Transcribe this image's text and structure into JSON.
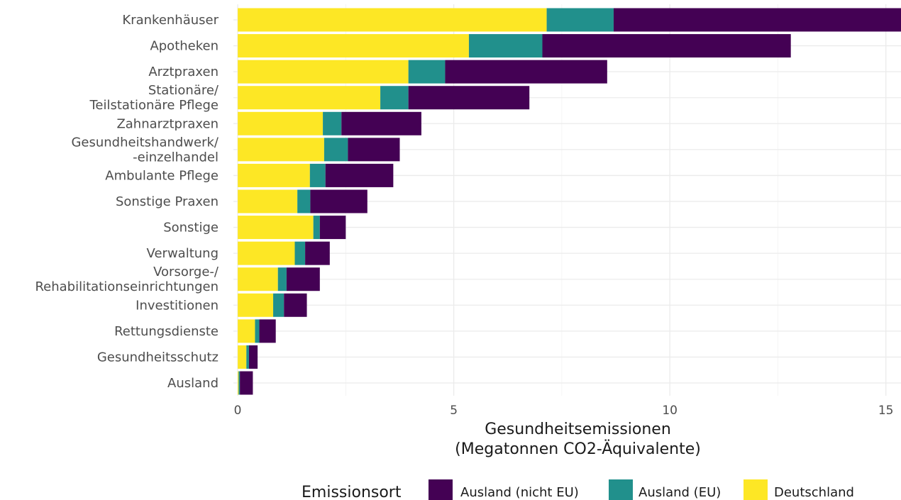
{
  "chart_data": {
    "type": "bar",
    "orientation": "horizontal",
    "stacked": true,
    "categories": [
      [
        "Krankenhäuser"
      ],
      [
        "Apotheken"
      ],
      [
        "Arztpraxen"
      ],
      [
        "Stationäre/",
        "Teilstationäre Pflege"
      ],
      [
        "Zahnarztpraxen"
      ],
      [
        "Gesundheitshandwerk/",
        "-einzelhandel"
      ],
      [
        "Ambulante Pflege"
      ],
      [
        "Sonstige Praxen"
      ],
      [
        "Sonstige"
      ],
      [
        "Verwaltung"
      ],
      [
        "Vorsorge-/",
        "Rehabilitationseinrichtungen"
      ],
      [
        "Investitionen"
      ],
      [
        "Rettungsdienste"
      ],
      [
        "Gesundheitsschutz"
      ],
      [
        "Ausland"
      ]
    ],
    "series": [
      {
        "name": "Deutschland",
        "color": "#FDE725",
        "values": [
          7.15,
          5.35,
          3.95,
          3.3,
          1.97,
          2.0,
          1.67,
          1.38,
          1.75,
          1.32,
          0.93,
          0.82,
          0.4,
          0.2,
          0.02
        ]
      },
      {
        "name": "Ausland (EU)",
        "color": "#21908C",
        "values": [
          1.55,
          1.7,
          0.85,
          0.65,
          0.43,
          0.55,
          0.36,
          0.3,
          0.15,
          0.24,
          0.2,
          0.25,
          0.1,
          0.06,
          0.03
        ]
      },
      {
        "name": "Ausland (nicht EU)",
        "color": "#440154",
        "values": [
          6.9,
          5.75,
          3.75,
          2.8,
          1.85,
          1.2,
          1.57,
          1.32,
          0.6,
          0.57,
          0.77,
          0.53,
          0.38,
          0.2,
          0.3
        ]
      }
    ],
    "xlim": [
      -0.1,
      15.35
    ],
    "xticks": [
      0,
      5,
      10,
      15
    ],
    "xtick_labels": [
      "0",
      "5",
      "10",
      "15"
    ],
    "xlabel": [
      "Gesundheitsemissionen",
      "(Megatonnen CO2-Äquivalente)"
    ],
    "ylabel": "",
    "grid": true,
    "legend": {
      "title": "Emissionsort",
      "position": "bottom",
      "items": [
        {
          "label": "Ausland (nicht EU)",
          "color": "#440154"
        },
        {
          "label": "Ausland (EU)",
          "color": "#21908C"
        },
        {
          "label": "Deutschland",
          "color": "#FDE725"
        }
      ]
    }
  }
}
